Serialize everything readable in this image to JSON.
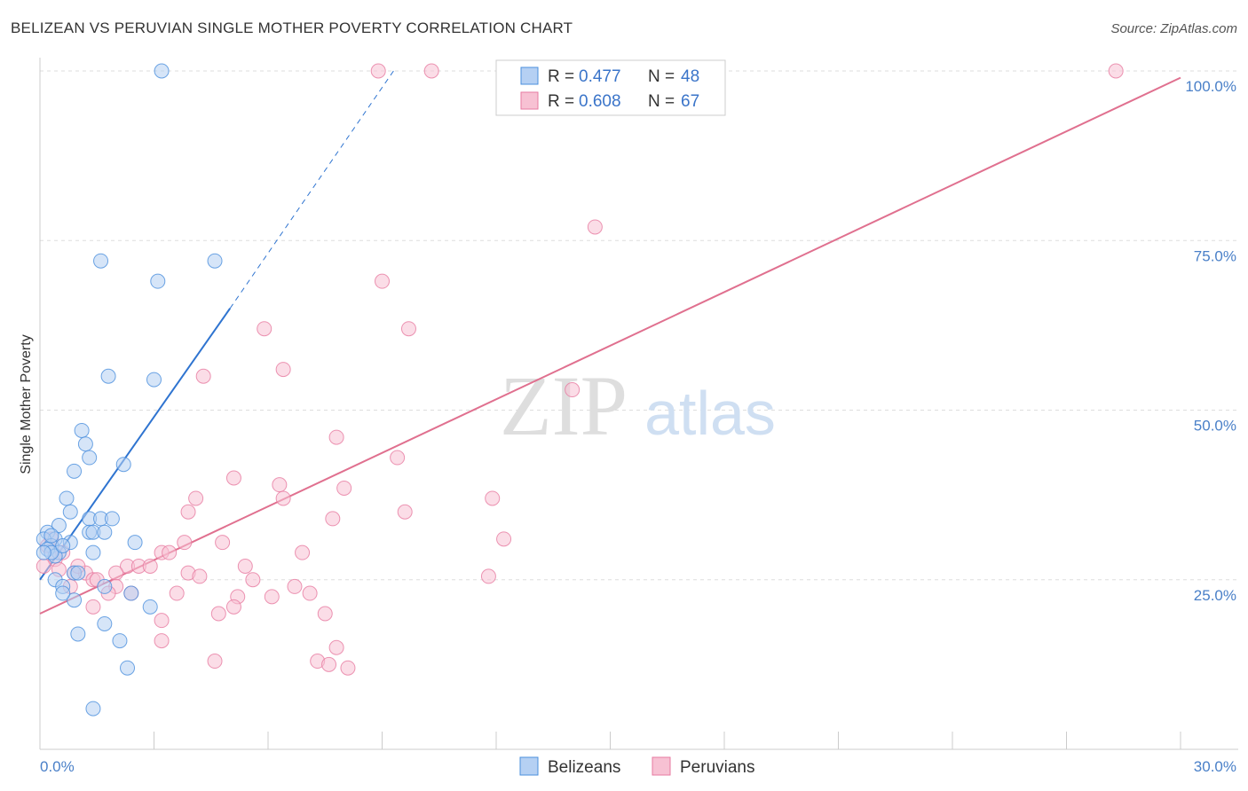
{
  "header": {
    "title": "BELIZEAN VS PERUVIAN SINGLE MOTHER POVERTY CORRELATION CHART",
    "source": "Source: ZipAtlas.com"
  },
  "watermark": {
    "zip": "ZIP",
    "atlas": "atlas"
  },
  "colors": {
    "blue": "#4a8fdd",
    "blue_fill": "#b5d0f3",
    "blue_line": "#2f74d0",
    "pink": "#e77aa0",
    "pink_fill": "#f7c1d3",
    "pink_line": "#e0708f",
    "grid": "#dddddd",
    "tick_label": "#4a80c8"
  },
  "legend": {
    "items": [
      {
        "r_label": "R =",
        "r_value": "0.477",
        "n_label": "N =",
        "n_value": "48"
      },
      {
        "r_label": "R =",
        "r_value": "0.608",
        "n_label": "N =",
        "n_value": "67"
      }
    ]
  },
  "chart_data": {
    "type": "scatter",
    "title": "BELIZEAN VS PERUVIAN SINGLE MOTHER POVERTY CORRELATION CHART",
    "xlabel": "",
    "ylabel": "Single Mother Poverty",
    "xlim": [
      0,
      30
    ],
    "ylim": [
      0,
      100
    ],
    "x_tick_labels": [
      "0.0%",
      "30.0%"
    ],
    "y_tick_labels": [
      "25.0%",
      "50.0%",
      "75.0%",
      "100.0%"
    ],
    "y_ticks": [
      25,
      50,
      75,
      100
    ],
    "grid": true,
    "legend_position": "top-center",
    "series": [
      {
        "name": "Belizeans",
        "r": 0.477,
        "n": 48,
        "trend": {
          "x0": 0,
          "y0": 25,
          "x1": 5,
          "y1": 65,
          "dashed_to_x": 9.3,
          "dashed_to_y": 100
        },
        "points": [
          [
            3.2,
            100
          ],
          [
            1.6,
            72
          ],
          [
            4.6,
            72
          ],
          [
            3.1,
            69
          ],
          [
            1.8,
            55
          ],
          [
            3.0,
            54.5
          ],
          [
            1.1,
            47
          ],
          [
            1.2,
            45
          ],
          [
            1.3,
            43
          ],
          [
            0.9,
            41
          ],
          [
            2.2,
            42
          ],
          [
            0.7,
            37
          ],
          [
            0.8,
            35
          ],
          [
            1.3,
            34
          ],
          [
            1.6,
            34
          ],
          [
            1.9,
            34
          ],
          [
            0.5,
            33
          ],
          [
            1.3,
            32
          ],
          [
            1.4,
            32
          ],
          [
            1.7,
            32
          ],
          [
            0.2,
            32
          ],
          [
            0.4,
            31
          ],
          [
            2.5,
            30.5
          ],
          [
            0.1,
            31
          ],
          [
            0.8,
            30.5
          ],
          [
            0.3,
            30
          ],
          [
            0.5,
            29
          ],
          [
            1.4,
            29
          ],
          [
            0.2,
            29.5
          ],
          [
            0.4,
            28.5
          ],
          [
            0.3,
            29
          ],
          [
            0.1,
            29
          ],
          [
            0.9,
            26
          ],
          [
            1.0,
            26
          ],
          [
            0.4,
            25
          ],
          [
            0.6,
            24
          ],
          [
            1.7,
            24
          ],
          [
            2.4,
            23
          ],
          [
            0.9,
            22
          ],
          [
            0.6,
            23
          ],
          [
            2.9,
            21
          ],
          [
            1.7,
            18.5
          ],
          [
            1.0,
            17
          ],
          [
            2.1,
            16
          ],
          [
            2.3,
            12
          ],
          [
            1.4,
            6
          ],
          [
            0.3,
            31.5
          ],
          [
            0.6,
            30
          ]
        ]
      },
      {
        "name": "Peruvians",
        "r": 0.608,
        "n": 67,
        "trend": {
          "x0": 0,
          "y0": 20,
          "x1": 30,
          "y1": 99
        },
        "points": [
          [
            8.9,
            100
          ],
          [
            10.3,
            100
          ],
          [
            28.3,
            100
          ],
          [
            14.6,
            77
          ],
          [
            9.0,
            69
          ],
          [
            5.9,
            62
          ],
          [
            9.7,
            62
          ],
          [
            6.4,
            56
          ],
          [
            4.3,
            55
          ],
          [
            14.0,
            53
          ],
          [
            7.8,
            46
          ],
          [
            9.4,
            43
          ],
          [
            5.1,
            40
          ],
          [
            6.3,
            39
          ],
          [
            8.0,
            38.5
          ],
          [
            4.1,
            37
          ],
          [
            6.4,
            37
          ],
          [
            11.9,
            37
          ],
          [
            9.6,
            35
          ],
          [
            3.9,
            35
          ],
          [
            7.7,
            34
          ],
          [
            12.2,
            31
          ],
          [
            3.8,
            30.5
          ],
          [
            4.8,
            30.5
          ],
          [
            3.2,
            29
          ],
          [
            3.4,
            29
          ],
          [
            6.9,
            29
          ],
          [
            0.4,
            28
          ],
          [
            2.3,
            27
          ],
          [
            2.6,
            27
          ],
          [
            5.4,
            27
          ],
          [
            0.1,
            27
          ],
          [
            0.5,
            26.5
          ],
          [
            0.9,
            26
          ],
          [
            1.2,
            26
          ],
          [
            2.0,
            26
          ],
          [
            3.9,
            26
          ],
          [
            4.2,
            25.5
          ],
          [
            5.6,
            25
          ],
          [
            11.8,
            25.5
          ],
          [
            1.4,
            25
          ],
          [
            2.0,
            24
          ],
          [
            0.8,
            24
          ],
          [
            6.7,
            24
          ],
          [
            7.1,
            23
          ],
          [
            3.6,
            23
          ],
          [
            2.4,
            23
          ],
          [
            1.8,
            23
          ],
          [
            5.2,
            22.5
          ],
          [
            6.1,
            22.5
          ],
          [
            4.7,
            20
          ],
          [
            7.5,
            20
          ],
          [
            1.4,
            21
          ],
          [
            5.1,
            21
          ],
          [
            3.2,
            19
          ],
          [
            3.2,
            16
          ],
          [
            7.8,
            15
          ],
          [
            4.6,
            13
          ],
          [
            7.3,
            13
          ],
          [
            8.1,
            12
          ],
          [
            7.6,
            12.5
          ],
          [
            0.3,
            31
          ],
          [
            0.6,
            29
          ],
          [
            1.0,
            27
          ],
          [
            2.9,
            27
          ],
          [
            0.2,
            30
          ],
          [
            1.5,
            25
          ]
        ]
      }
    ]
  },
  "bottom_legend": {
    "items": [
      "Belizeans",
      "Peruvians"
    ]
  }
}
